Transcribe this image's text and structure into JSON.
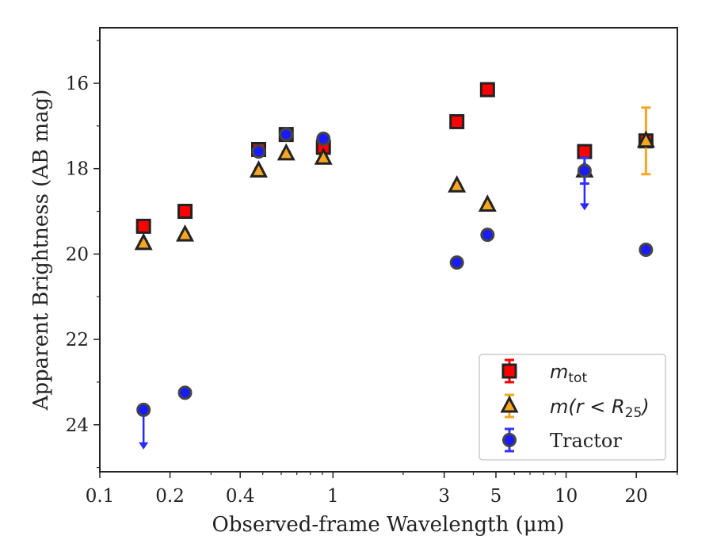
{
  "chart_data": {
    "type": "scatter",
    "xlabel": "Observed-frame Wavelength (μm)",
    "ylabel": "Apparent Brightness (AB mag)",
    "xscale": "log",
    "xlim": [
      0.1,
      30
    ],
    "ylim": [
      25.1,
      14.7
    ],
    "y_inverted": true,
    "x_tick_labels": [
      "0.1",
      "0.2",
      "0.4",
      "1",
      "3",
      "5",
      "10",
      "20"
    ],
    "x_ticks": [
      0.1,
      0.2,
      0.4,
      1,
      3,
      5,
      10,
      20
    ],
    "y_ticks": [
      16,
      18,
      20,
      22,
      24
    ],
    "y_tick_labels": [
      "16",
      "18",
      "20",
      "22",
      "24"
    ],
    "grid": false,
    "legend_position": "lower-right",
    "series": [
      {
        "name": "m_tot",
        "marker": "square",
        "color": "#ff0000",
        "edge_color": "#222222",
        "error_color": "#ff0000",
        "x": [
          0.154,
          0.232,
          0.48,
          0.63,
          0.91,
          3.4,
          4.6,
          12.0,
          22.0
        ],
        "y": [
          19.35,
          19.0,
          17.55,
          17.2,
          17.5,
          16.9,
          16.15,
          17.6,
          17.35
        ],
        "yerr": [
          0.1,
          0.1,
          0.05,
          0.05,
          0.1,
          0.05,
          0.05,
          0.1,
          0.1
        ]
      },
      {
        "name": "m(r<R25)",
        "marker": "triangle",
        "color": "#f5a623",
        "edge_color": "#222222",
        "error_color": "#f5a623",
        "x": [
          0.154,
          0.232,
          0.48,
          0.63,
          0.91,
          3.4,
          4.6,
          12.0,
          22.0
        ],
        "y": [
          19.75,
          19.55,
          18.05,
          17.65,
          17.75,
          18.4,
          18.85,
          18.05,
          17.35
        ],
        "yerr": [
          0.05,
          0.05,
          0.05,
          0.05,
          0.05,
          0.05,
          0.05,
          0.1,
          0.78
        ]
      },
      {
        "name": "Tractor",
        "marker": "circle",
        "color": "#1a1aff",
        "edge_color": "#444444",
        "error_color": "#3333ff",
        "x": [
          0.154,
          0.232,
          0.48,
          0.63,
          0.91,
          3.4,
          4.6,
          12.0,
          22.0
        ],
        "y": [
          23.65,
          23.25,
          17.6,
          17.2,
          17.3,
          20.2,
          19.55,
          18.05,
          19.9
        ],
        "yerr": [
          0.05,
          0.05,
          0.05,
          0.05,
          0.05,
          0.05,
          0.05,
          0.3,
          0.05
        ],
        "upper_limits": [
          true,
          false,
          false,
          false,
          false,
          false,
          false,
          true,
          false
        ]
      }
    ],
    "legend": [
      {
        "label_main": "m",
        "label_sub": "tot",
        "series": "m_tot"
      },
      {
        "label_main": "m(r < R",
        "label_sub": "25",
        "label_end": ")",
        "series": "m(r<R25)"
      },
      {
        "label_main": "Tractor",
        "series": "Tractor"
      }
    ]
  }
}
